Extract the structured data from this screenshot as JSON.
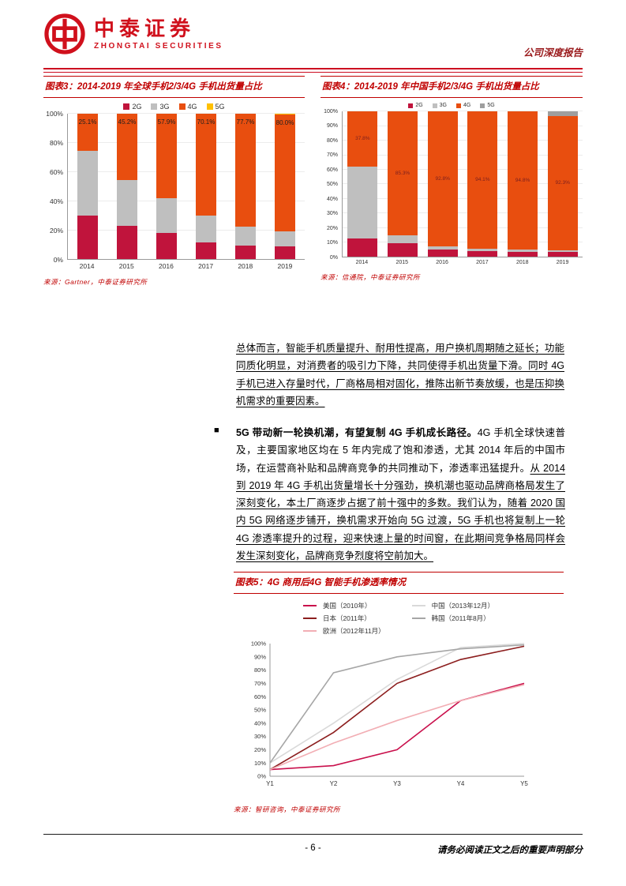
{
  "theme": {
    "accent_red": "#c00000",
    "logo_red": "#d0101c",
    "report_type_red": "#9a1a1c"
  },
  "header": {
    "brand_cn": "中泰证券",
    "brand_en": "ZHONGTAI SECURITIES",
    "report_type": "公司深度报告"
  },
  "body": {
    "p1": "总体而言，智能手机质量提升、耐用性提高，用户换机周期随之延长；功能同质化明显，对消费者的吸引力下降，共同使得手机出货量下滑。同时 4G 手机已进入存量时代，厂商格局相对固化，推陈出新节奏放缓，也是压抑换机需求的重要因素。",
    "bullet_lead": "5G 带动新一轮换机潮，有望复制 4G 手机成长路径。",
    "bullet_mid": "4G 手机全球快速普及，主要国家地区均在 5 年内完成了饱和渗透，尤其 2014 年后的中国市场，在运营商补贴和品牌商竞争的共同推动下，渗透率迅猛提升。",
    "bullet_tail": "从 2014 到 2019 年 4G 手机出货量增长十分强劲，换机潮也驱动品牌商格局发生了深刻变化，本土厂商逐步占据了前十强中的多数。我们认为，随着 2020 国内 5G 网络逐步铺开，换机需求开始向 5G 过渡，5G 手机也将复制上一轮 4G 渗透率提升的过程，迎来快速上量的时间窗，在此期间竞争格局同样会发生深刻变化，品牌商竞争烈度将空前加大。"
  },
  "footer": {
    "page_number": "- 6 -",
    "notice": "请务必阅读正文之后的重要声明部分"
  },
  "chart_data": [
    {
      "id": "fig3",
      "type": "bar",
      "stacked": true,
      "title": "图表3：2014-2019 年全球手机2/3/4G 手机出货量占比",
      "source": "来源：Gartner，中泰证券研究所",
      "categories": [
        "2014",
        "2015",
        "2016",
        "2017",
        "2018",
        "2019"
      ],
      "series": [
        {
          "name": "2G",
          "color": "#c0143c",
          "values": [
            29.9,
            22.8,
            18.1,
            11.9,
            9.3,
            9.0
          ]
        },
        {
          "name": "3G",
          "color": "#bfbfbf",
          "values": [
            45.0,
            32.0,
            24.0,
            18.0,
            13.0,
            10.5
          ]
        },
        {
          "name": "4G",
          "color": "#e84e0f",
          "values": [
            25.1,
            45.2,
            57.9,
            70.1,
            77.7,
            80.0
          ]
        },
        {
          "name": "5G",
          "color": "#ffc000",
          "values": [
            0,
            0,
            0,
            0,
            0,
            0.5
          ]
        }
      ],
      "labels": [
        "25.1%",
        "45.2%",
        "57.9%",
        "70.1%",
        "77.7%",
        "80.0%"
      ],
      "label_series": "4G",
      "label_color": "#1f1f1f",
      "ylim": [
        0,
        100
      ],
      "ytick_step": 20,
      "legend_position": "top"
    },
    {
      "id": "fig4",
      "type": "bar",
      "stacked": true,
      "title": "图表4：2014-2019 年中国手机2/3/4G 手机出货量占比",
      "source": "来源：信通院，中泰证券研究所",
      "categories": [
        "2014",
        "2015",
        "2016",
        "2017",
        "2018",
        "2019"
      ],
      "series": [
        {
          "name": "2G",
          "color": "#c0143c",
          "values": [
            12.9,
            9.3,
            5.3,
            4.1,
            3.5,
            3.7
          ]
        },
        {
          "name": "3G",
          "color": "#bfbfbf",
          "values": [
            49.3,
            5.4,
            1.9,
            1.8,
            1.7,
            0.9
          ]
        },
        {
          "name": "4G",
          "color": "#e84e0f",
          "values": [
            37.8,
            85.3,
            92.8,
            94.1,
            94.8,
            92.3
          ]
        },
        {
          "name": "5G",
          "color": "#9e9e9e",
          "values": [
            0,
            0,
            0,
            0,
            0,
            3.1
          ]
        }
      ],
      "labels": [
        "37.8%",
        "85.3%",
        "92.8%",
        "94.1%",
        "94.8%",
        "92.3%"
      ],
      "label_series": "4G",
      "label_color": "#7a1f1f",
      "ylim": [
        0,
        100
      ],
      "ytick_step": 10,
      "legend_position": "top"
    },
    {
      "id": "fig5",
      "type": "line",
      "title": "图表5：4G 商用后4G 智能手机渗透率情况",
      "source": "来源：智研咨询，中泰证券研究所",
      "x": [
        "Y1",
        "Y2",
        "Y3",
        "Y4",
        "Y5"
      ],
      "series": [
        {
          "name": "美国（2010年）",
          "color": "#c9104c",
          "values": [
            5,
            8,
            20,
            57,
            70
          ]
        },
        {
          "name": "中国（2013年12月）",
          "color": "#d9d9d9",
          "values": [
            10,
            40,
            73,
            97,
            100
          ]
        },
        {
          "name": "日本（2011年）",
          "color": "#8c1e1e",
          "values": [
            5,
            33,
            70,
            88,
            98
          ]
        },
        {
          "name": "韩国（2011年8月）",
          "color": "#a6a6a6",
          "values": [
            10,
            78,
            90,
            96,
            99
          ]
        },
        {
          "name": "欧洲（2012年11月）",
          "color": "#f2aeb4",
          "values": [
            5,
            25,
            42,
            57,
            69
          ]
        }
      ],
      "ylim": [
        0,
        100
      ],
      "ytick_step": 10,
      "legend_position": "top"
    }
  ]
}
